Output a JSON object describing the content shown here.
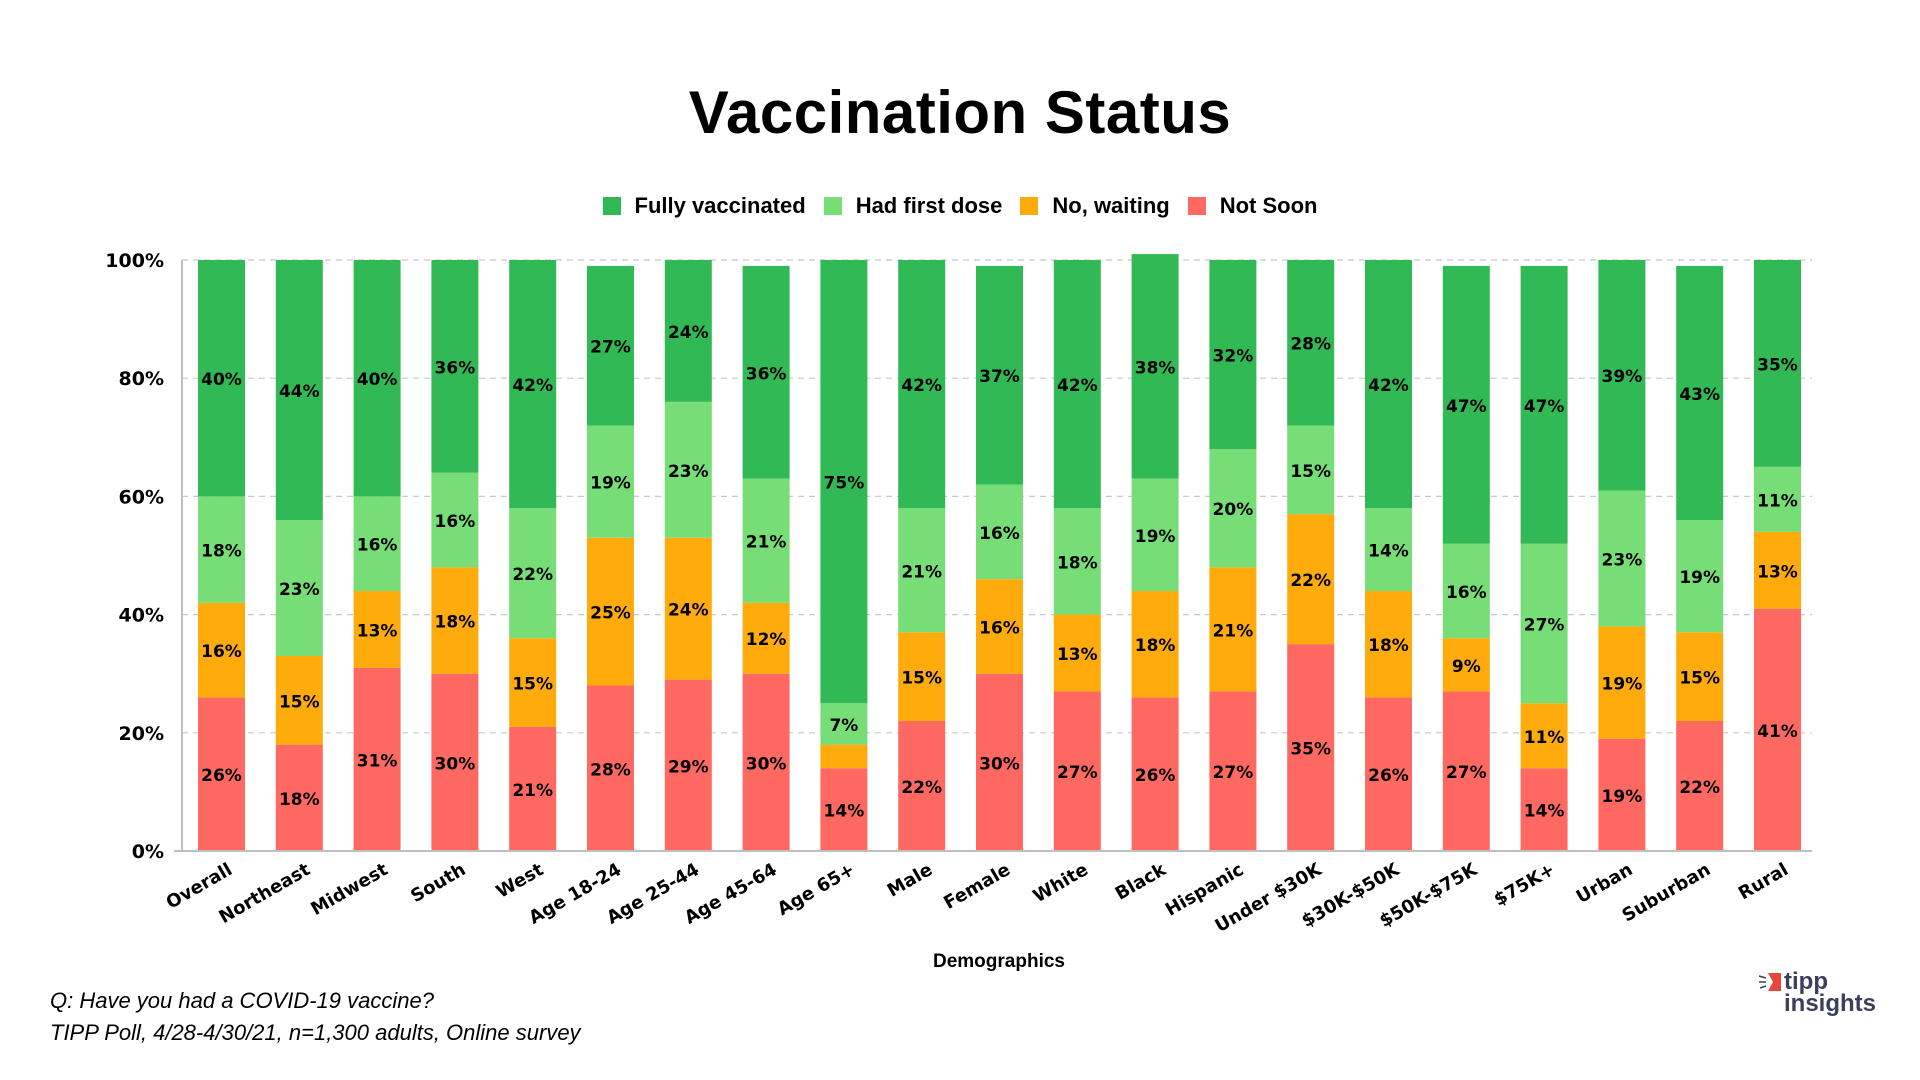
{
  "chart_data": {
    "type": "bar",
    "stacked": true,
    "title": "Vaccination Status",
    "xlabel": "Demographics",
    "ylabel": "",
    "ylim": [
      0,
      100
    ],
    "yticks": [
      "0%",
      "20%",
      "40%",
      "60%",
      "80%",
      "100%"
    ],
    "grid": true,
    "legend_position": "top",
    "categories": [
      "Overall",
      "Northeast",
      "Midwest",
      "South",
      "West",
      "Age 18-24",
      "Age 25-44",
      "Age 45-64",
      "Age 65+",
      "Male",
      "Female",
      "White",
      "Black",
      "Hispanic",
      "Under $30K",
      "$30K-$50K",
      "$50K-$75K",
      "$75K+",
      "Urban",
      "Suburban",
      "Rural"
    ],
    "series": [
      {
        "name": "Not Soon",
        "color": "#ff6961",
        "values": [
          26,
          18,
          31,
          30,
          21,
          28,
          29,
          30,
          14,
          22,
          30,
          27,
          26,
          27,
          35,
          26,
          27,
          14,
          19,
          22,
          41
        ],
        "labels": [
          "26%",
          "18%",
          "31%",
          "30%",
          "21%",
          "28%",
          "29%",
          "30%",
          "14%",
          "22%",
          "30%",
          "27%",
          "26%",
          "27%",
          "35%",
          "26%",
          "27%",
          "14%",
          "19%",
          "22%",
          "41%"
        ]
      },
      {
        "name": "No, waiting",
        "color": "#ffab0b",
        "values": [
          16,
          15,
          13,
          18,
          15,
          25,
          24,
          12,
          4,
          15,
          16,
          13,
          18,
          21,
          22,
          18,
          9,
          11,
          19,
          15,
          13
        ],
        "labels": [
          "16%",
          "15%",
          "13%",
          "18%",
          "15%",
          "25%",
          "24%",
          "12%",
          "",
          "15%",
          "16%",
          "13%",
          "18%",
          "21%",
          "22%",
          "18%",
          "9%",
          "11%",
          "19%",
          "15%",
          "13%"
        ]
      },
      {
        "name": "Had first dose",
        "color": "#77dd77",
        "values": [
          18,
          23,
          16,
          16,
          22,
          19,
          23,
          21,
          7,
          21,
          16,
          18,
          19,
          20,
          15,
          14,
          16,
          27,
          23,
          19,
          11
        ],
        "labels": [
          "18%",
          "23%",
          "16%",
          "16%",
          "22%",
          "19%",
          "23%",
          "21%",
          "7%",
          "21%",
          "16%",
          "18%",
          "19%",
          "20%",
          "15%",
          "14%",
          "16%",
          "27%",
          "23%",
          "19%",
          "11%"
        ]
      },
      {
        "name": "Fully vaccinated",
        "color": "#30b955",
        "values": [
          40,
          44,
          40,
          36,
          42,
          27,
          24,
          36,
          75,
          42,
          37,
          42,
          38,
          32,
          28,
          42,
          47,
          47,
          39,
          43,
          35
        ],
        "labels": [
          "40%",
          "44%",
          "40%",
          "36%",
          "42%",
          "27%",
          "24%",
          "36%",
          "75%",
          "42%",
          "37%",
          "42%",
          "38%",
          "32%",
          "28%",
          "42%",
          "47%",
          "47%",
          "39%",
          "43%",
          "35%"
        ]
      }
    ],
    "legend_order": [
      "Fully vaccinated",
      "Had first dose",
      "No, waiting",
      "Not Soon"
    ]
  },
  "footnote": {
    "question": "Q:  Have you had a COVID-19 vaccine?",
    "source": "TIPP Poll, 4/28-4/30/21, n=1,300 adults, Online survey"
  },
  "logo": {
    "line1": "tipp",
    "line2": "insights",
    "accent_color": "#e8453c",
    "text_color": "#3b3f5c"
  }
}
